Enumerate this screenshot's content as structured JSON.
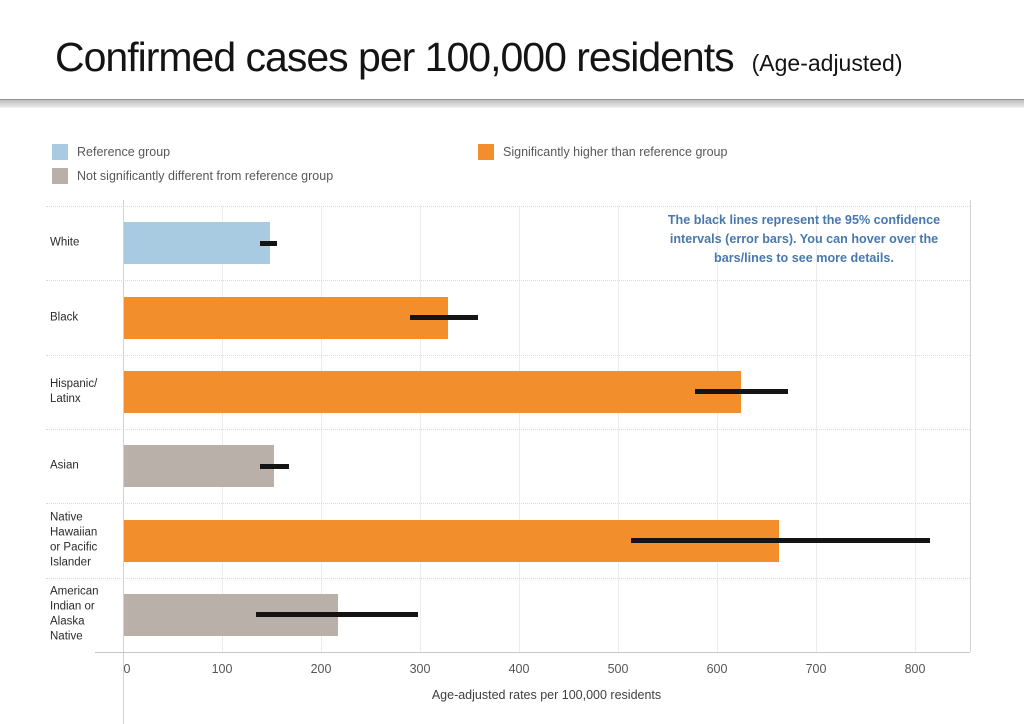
{
  "title": "Confirmed cases per 100,000 residents",
  "subtitle": "(Age-adjusted)",
  "legend": {
    "items": [
      {
        "key": "reference",
        "label": "Reference group",
        "color": "#A9CBE2"
      },
      {
        "key": "not_significant",
        "label": "Not significantly different from reference group",
        "color": "#B9B0AA"
      },
      {
        "key": "significant",
        "label": "Significantly higher than reference group",
        "color": "#F28E2B"
      }
    ]
  },
  "annotation": {
    "text": "The black lines represent the 95% confidence intervals (error bars). You can hover over the bars/lines to see more details.",
    "color": "#4878AE"
  },
  "chart_data": {
    "type": "bar",
    "orientation": "horizontal",
    "title": "Confirmed cases per 100,000 residents (Age-adjusted)",
    "xlabel": "Age-adjusted rates per 100,000 residents",
    "xlim": [
      0,
      856
    ],
    "xticks": [
      0,
      100,
      200,
      300,
      400,
      500,
      600,
      700,
      800
    ],
    "grid": "vertical-light",
    "error_bars": "95% confidence intervals",
    "bars": [
      {
        "category": "White",
        "label": "White",
        "value": 147,
        "ci_low": 138,
        "ci_high": 156,
        "group": "reference"
      },
      {
        "category": "Black",
        "label": "Black",
        "value": 327,
        "ci_low": 290,
        "ci_high": 359,
        "group": "significant"
      },
      {
        "category": "Hispanic/Latinx",
        "label": "Hispanic/\nLatinx",
        "value": 623,
        "ci_low": 578,
        "ci_high": 672,
        "group": "significant"
      },
      {
        "category": "Asian",
        "label": "Asian",
        "value": 152,
        "ci_low": 138,
        "ci_high": 168,
        "group": "not_significant"
      },
      {
        "category": "Native Hawaiian or Pacific Islander",
        "label": "Native\nHawaiian\nor Pacific\nIslander",
        "value": 662,
        "ci_low": 513,
        "ci_high": 815,
        "group": "significant"
      },
      {
        "category": "American Indian or Alaska Native",
        "label": "American\nIndian or\nAlaska\nNative",
        "value": 216,
        "ci_low": 134,
        "ci_high": 298,
        "group": "not_significant"
      }
    ]
  }
}
